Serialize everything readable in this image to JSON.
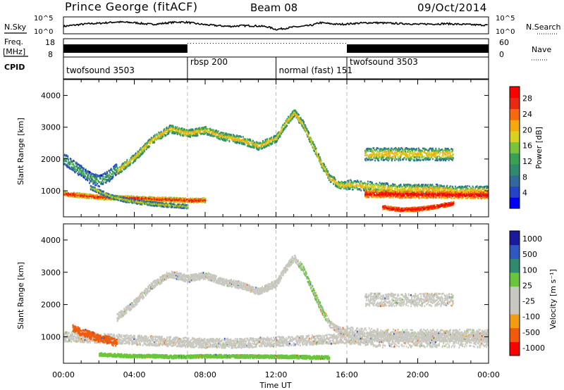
{
  "header": {
    "title": "Prince George (fitACF)",
    "beam": "Beam 08",
    "date": "09/Oct/2014"
  },
  "strips": {
    "sky_label": "N.Sky",
    "search_label": "N.Search",
    "freq_label_top": "Freq.",
    "freq_label_unit": "[MHz]",
    "nave_label": "Nave",
    "cpid_label": "CPID",
    "sky_ticks": [
      "10^5",
      "10^0"
    ],
    "search_ticks": [
      "10^5",
      "10^0"
    ],
    "freq_ticks": [
      "18",
      "8"
    ],
    "nave_ticks": [
      "60",
      "0"
    ]
  },
  "cpid_segments": [
    {
      "label": "twofsound 3503",
      "start_hour": 0
    },
    {
      "label": "rbsp 200",
      "start_hour": 7.0
    },
    {
      "label": "normal (fast) 151",
      "start_hour": 12.0
    },
    {
      "label": "twofsound 3503",
      "start_hour": 16.0
    }
  ],
  "colors": {
    "power_scale": [
      "#0000ff",
      "#2444c8",
      "#2f6a9a",
      "#2f8a70",
      "#3aa052",
      "#7ac43c",
      "#d9d020",
      "#f7a80e",
      "#f46a0c",
      "#e72a10",
      "#ff0000"
    ],
    "velocity_scale": [
      "#ff0000",
      "#f05a0a",
      "#f39c12",
      "#c8c8c0",
      "#c8c8c0",
      "#69c63a",
      "#2f8a70",
      "#2f58c0",
      "#1a1a9c"
    ],
    "ground_scatter": "#c8c8c0",
    "guide_lines": "#bdbdbd"
  },
  "chart_data": [
    {
      "type": "line",
      "name": "sky-noise",
      "title": "N.Sky / N.Search",
      "ylim_log10": [
        0,
        5
      ],
      "x_hours": [
        0,
        0.5,
        1,
        1.5,
        2,
        2.5,
        3,
        3.5,
        4,
        4.5,
        5,
        5.5,
        6,
        6.5,
        7,
        7.5,
        8,
        8.5,
        9,
        9.5,
        10,
        10.5,
        11,
        11.5,
        12,
        12.5,
        13,
        13.5,
        14,
        14.5,
        15,
        15.5,
        16,
        16.5,
        17,
        17.5,
        18,
        18.5,
        19,
        19.5,
        20,
        20.5,
        21,
        21.5,
        22,
        22.5,
        23,
        23.5,
        24
      ],
      "log10_values": [
        2.2,
        2.5,
        2.8,
        3.0,
        3.1,
        3.3,
        3.5,
        3.4,
        3.3,
        3.0,
        2.8,
        3.0,
        3.3,
        3.5,
        3.4,
        3.0,
        2.7,
        2.5,
        2.3,
        2.2,
        2.4,
        2.4,
        2.3,
        2.1,
        1.3,
        1.6,
        2.0,
        2.2,
        2.5,
        3.3,
        3.0,
        2.8,
        2.9,
        3.1,
        3.2,
        3.3,
        3.2,
        3.1,
        3.0,
        3.0,
        2.8,
        2.9,
        2.9,
        3.0,
        2.9,
        2.8,
        2.7,
        2.6,
        2.6
      ]
    },
    {
      "type": "line",
      "name": "frequency",
      "ylabel": "Freq. [MHz]",
      "ylim": [
        8,
        18
      ],
      "x_hours": [
        0,
        7,
        7,
        16,
        16,
        24
      ],
      "values": [
        10.5,
        10.5,
        15.5,
        15.5,
        10.5,
        10.5
      ]
    },
    {
      "type": "heatmap",
      "name": "power",
      "xlabel": "",
      "ylabel": "Slant Range [km]",
      "xlim_hours": [
        0,
        24
      ],
      "ylim_km": [
        180,
        4500
      ],
      "y_ticks": [
        1000,
        2000,
        3000,
        4000
      ],
      "colorbar": {
        "label": "Power [dB]",
        "ticks": [
          4,
          8,
          12,
          16,
          20,
          24,
          28
        ],
        "range": [
          0,
          31
        ]
      },
      "features": [
        {
          "kind": "band",
          "name": "main-ionospheric-trace",
          "x_hours": [
            3.0,
            4.0,
            5.0,
            6.0,
            7.0,
            8.0,
            9.0,
            10.0,
            11.0,
            12.0,
            12.5,
            13.0,
            13.5,
            14.0,
            14.5,
            15.0,
            15.5,
            16.0
          ],
          "y_km": [
            1600,
            2050,
            2600,
            2950,
            2800,
            2900,
            2700,
            2600,
            2400,
            2650,
            3100,
            3450,
            3100,
            2500,
            1900,
            1400,
            1200,
            1150
          ],
          "half_width_km": 120,
          "power_db": [
            10,
            14,
            20
          ]
        },
        {
          "kind": "band",
          "name": "near-range-e-region",
          "x_hours": [
            0,
            1,
            2,
            3,
            4,
            5,
            6,
            7,
            8
          ],
          "y_km": [
            900,
            850,
            800,
            780,
            760,
            740,
            720,
            700,
            700
          ],
          "half_width_km": 70,
          "power_db": [
            18,
            24,
            28
          ]
        },
        {
          "kind": "band",
          "name": "descending-trace",
          "x_hours": [
            1.5,
            2.5,
            3.5,
            4.5,
            5.5,
            6.5,
            7.0
          ],
          "y_km": [
            1100,
            850,
            700,
            620,
            560,
            520,
            500
          ],
          "half_width_km": 60,
          "power_db": [
            6,
            12,
            18
          ]
        },
        {
          "kind": "band",
          "name": "early-range-band",
          "x_hours": [
            0,
            0.5,
            1.0,
            1.5,
            2.0,
            2.5,
            3.0
          ],
          "y_km": [
            2000,
            1800,
            1600,
            1400,
            1300,
            1450,
            1700
          ],
          "half_width_km": 180,
          "power_db": [
            4,
            8,
            12
          ]
        },
        {
          "kind": "band",
          "name": "evening-far-band",
          "x_hours": [
            17.0,
            18.0,
            19.0,
            20.0,
            21.0,
            22.0
          ],
          "y_km": [
            2150,
            2150,
            2150,
            2150,
            2150,
            2150
          ],
          "half_width_km": 200,
          "power_db": [
            8,
            14,
            20
          ]
        },
        {
          "kind": "band",
          "name": "evening-mid-band",
          "x_hours": [
            16.0,
            17.0,
            18.0,
            19.0,
            20.0,
            21.0,
            22.0,
            23.0,
            24.0
          ],
          "y_km": [
            1200,
            1150,
            1100,
            1050,
            1050,
            1050,
            1000,
            1000,
            1000
          ],
          "half_width_km": 150,
          "power_db": [
            8,
            14,
            20
          ]
        },
        {
          "kind": "band",
          "name": "evening-strong-near-range",
          "x_hours": [
            17.0,
            18.0,
            19.0,
            20.0,
            21.0,
            22.0,
            23.0,
            24.0
          ],
          "y_km": [
            900,
            900,
            880,
            880,
            880,
            870,
            870,
            860
          ],
          "half_width_km": 110,
          "power_db": [
            22,
            26,
            31
          ]
        },
        {
          "kind": "band",
          "name": "evening-low-range",
          "x_hours": [
            18.0,
            19.0,
            20.0,
            21.0,
            22.0
          ],
          "y_km": [
            480,
            400,
            420,
            500,
            600
          ],
          "half_width_km": 60,
          "power_db": [
            24,
            28,
            31
          ]
        }
      ]
    },
    {
      "type": "heatmap",
      "name": "velocity",
      "xlabel": "Time UT",
      "ylabel": "Slant Range [km]",
      "xlim_hours": [
        0,
        24
      ],
      "ylim_km": [
        180,
        4500
      ],
      "y_ticks": [
        1000,
        2000,
        3000,
        4000
      ],
      "x_ticks": [
        "00:00",
        "04:00",
        "08:00",
        "12:00",
        "16:00",
        "20:00",
        "00:00"
      ],
      "colorbar": {
        "label": "Velocity [m s⁻¹]",
        "ticks": [
          "1000",
          "500",
          "100",
          "25",
          "-25",
          "-100",
          "-500",
          "-1000"
        ]
      },
      "features": [
        {
          "kind": "band",
          "name": "main-trace-ground-scatter",
          "x_hours": [
            3.0,
            4.0,
            5.0,
            6.0,
            7.0,
            8.0,
            9.0,
            10.0,
            11.0,
            12.0,
            12.5,
            13.0,
            13.5,
            14.0,
            14.5,
            15.0,
            15.5,
            16.0
          ],
          "y_km": [
            1600,
            2050,
            2600,
            2950,
            2800,
            2900,
            2700,
            2600,
            2400,
            2650,
            3100,
            3450,
            3100,
            2500,
            1900,
            1400,
            1200,
            1150
          ],
          "half_width_km": 110,
          "velocity": "ground",
          "accent_hours": [
            13.2,
            14.8
          ],
          "accent_velocity": "100"
        },
        {
          "kind": "band",
          "name": "near-range-ground",
          "x_hours": [
            0,
            2,
            4,
            6,
            8,
            10,
            12,
            14,
            16,
            18,
            20,
            22,
            24
          ],
          "y_km": [
            1000,
            950,
            900,
            850,
            800,
            800,
            850,
            900,
            950,
            1000,
            1000,
            1000,
            1000
          ],
          "half_width_km": 150,
          "velocity": "ground"
        },
        {
          "kind": "band",
          "name": "near-range-negative",
          "x_hours": [
            0.5,
            1.0,
            1.5,
            2.0,
            2.5,
            3.0
          ],
          "y_km": [
            1250,
            1150,
            1050,
            950,
            900,
            800
          ],
          "half_width_km": 120,
          "velocity": "-500"
        },
        {
          "kind": "band",
          "name": "low-range-positive",
          "x_hours": [
            2.0,
            3.0,
            4.0,
            5.0,
            6.0,
            7.0,
            8.0,
            12.0,
            13.0,
            14.0,
            15.0
          ],
          "y_km": [
            450,
            420,
            400,
            400,
            380,
            380,
            400,
            380,
            380,
            360,
            360
          ],
          "half_width_km": 50,
          "velocity": "100"
        },
        {
          "kind": "band",
          "name": "evening-far-ground",
          "x_hours": [
            17.0,
            18.0,
            19.0,
            20.0,
            21.0,
            22.0
          ],
          "y_km": [
            2150,
            2150,
            2150,
            2150,
            2150,
            2150
          ],
          "half_width_km": 200,
          "velocity": "ground"
        },
        {
          "kind": "band",
          "name": "evening-wide-ground",
          "x_hours": [
            16.0,
            17.0,
            18.0,
            19.0,
            20.0,
            21.0,
            22.0,
            23.0,
            24.0
          ],
          "y_km": [
            1050,
            1000,
            950,
            950,
            950,
            950,
            950,
            950,
            950
          ],
          "half_width_km": 280,
          "velocity": "ground"
        }
      ]
    }
  ]
}
